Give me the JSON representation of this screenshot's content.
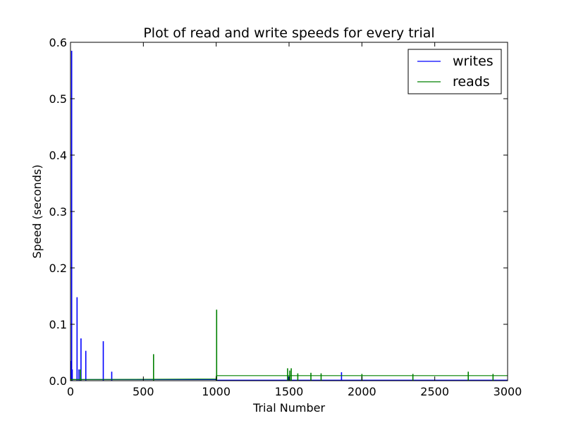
{
  "chart_data": {
    "type": "line",
    "title": "Plot of read and write speeds for every trial",
    "xlabel": "Trial Number",
    "ylabel": "Speed (seconds)",
    "xlim": [
      0,
      3000
    ],
    "ylim": [
      0,
      0.6
    ],
    "x_ticks": [
      0,
      500,
      1000,
      1500,
      2000,
      2500,
      3000
    ],
    "x_tick_labels": [
      "0",
      "500",
      "1000",
      "1500",
      "2000",
      "2500",
      "3000"
    ],
    "y_ticks": [
      0.0,
      0.1,
      0.2,
      0.3,
      0.4,
      0.5,
      0.6
    ],
    "y_tick_labels": [
      "0.0",
      "0.1",
      "0.2",
      "0.3",
      "0.4",
      "0.5",
      "0.6"
    ],
    "grid": false,
    "legend_position": "top-right",
    "series": [
      {
        "name": "writes",
        "color": "#0000ff",
        "baseline": [
          [
            0,
            0.002
          ],
          [
            1000,
            0.002
          ],
          [
            1001,
            0.001
          ],
          [
            3000,
            0.001
          ]
        ],
        "spikes": [
          [
            2,
            0.035
          ],
          [
            8,
            0.585
          ],
          [
            12,
            0.02
          ],
          [
            45,
            0.148
          ],
          [
            58,
            0.02
          ],
          [
            72,
            0.075
          ],
          [
            105,
            0.053
          ],
          [
            225,
            0.07
          ],
          [
            283,
            0.016
          ],
          [
            1493,
            0.008
          ],
          [
            1500,
            0.006
          ],
          [
            1860,
            0.015
          ]
        ]
      },
      {
        "name": "reads",
        "color": "#008000",
        "baseline": [
          [
            0,
            0.002
          ],
          [
            1000,
            0.003
          ],
          [
            1001,
            0.009
          ],
          [
            3000,
            0.009
          ]
        ],
        "spikes": [
          [
            5,
            0.003
          ],
          [
            68,
            0.02
          ],
          [
            570,
            0.047
          ],
          [
            1003,
            0.126
          ],
          [
            1490,
            0.022
          ],
          [
            1505,
            0.018
          ],
          [
            1515,
            0.022
          ],
          [
            1560,
            0.013
          ],
          [
            1650,
            0.014
          ],
          [
            1720,
            0.013
          ],
          [
            2000,
            0.012
          ],
          [
            2350,
            0.012
          ],
          [
            2730,
            0.016
          ],
          [
            2900,
            0.012
          ]
        ]
      }
    ]
  }
}
